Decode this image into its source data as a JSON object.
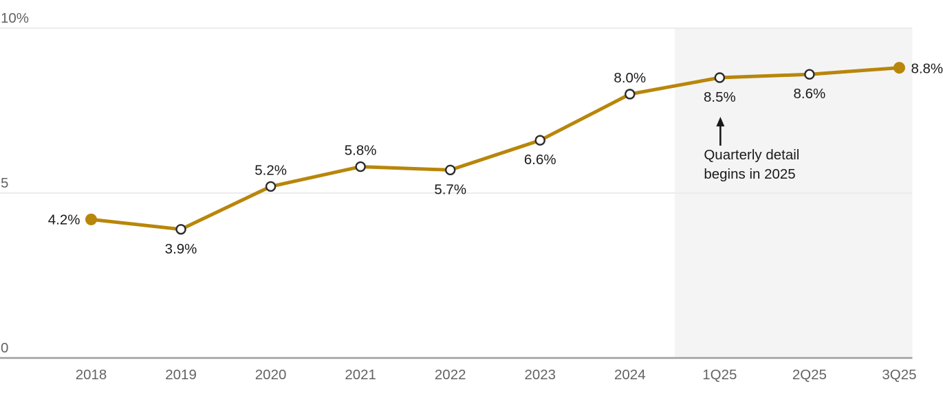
{
  "chart_data": {
    "type": "line",
    "title": "",
    "xlabel": "",
    "ylabel": "",
    "ylim": [
      0,
      10
    ],
    "grid": "horizontal",
    "legend": "none",
    "categories": [
      "2018",
      "2019",
      "2020",
      "2021",
      "2022",
      "2023",
      "2024",
      "1Q25",
      "2Q25",
      "3Q25"
    ],
    "values": [
      4.2,
      3.9,
      5.2,
      5.8,
      5.7,
      6.6,
      8.0,
      8.5,
      8.6,
      8.8
    ],
    "point_labels": [
      "4.2%",
      "3.9%",
      "5.2%",
      "5.8%",
      "5.7%",
      "6.6%",
      "8.0%",
      "8.5%",
      "8.6%",
      "8.8%"
    ],
    "label_positions": [
      "left",
      "below",
      "above",
      "above",
      "below",
      "below",
      "above",
      "below",
      "below",
      "right"
    ],
    "marker_styles": [
      "filled",
      "open",
      "open",
      "open",
      "open",
      "open",
      "open",
      "open",
      "open",
      "filled"
    ],
    "y_ticks": [
      {
        "value": 10,
        "label": "10%"
      },
      {
        "value": 5,
        "label": "5"
      },
      {
        "value": 0,
        "label": "0"
      }
    ],
    "shaded_region": {
      "starts_after_category": "2024",
      "covers_categories": [
        "1Q25",
        "2Q25",
        "3Q25"
      ],
      "color": "#F4F4F4"
    },
    "annotation": {
      "lines": [
        "Quarterly detail",
        "begins in 2025"
      ],
      "arrow": "up",
      "target_category": "1Q25"
    },
    "colors": {
      "line": "#B8860B",
      "marker_filled": "#B8860B",
      "marker_open_stroke": "#2B2B2B",
      "marker_open_fill": "#FFFFFF",
      "gridline": "#ECECEC",
      "axis_line": "#9E9E9E",
      "tick_text": "#636363",
      "data_label_text": "#1A1A1A",
      "annotation_text": "#1A1A1A",
      "background": "#FFFFFF"
    }
  }
}
